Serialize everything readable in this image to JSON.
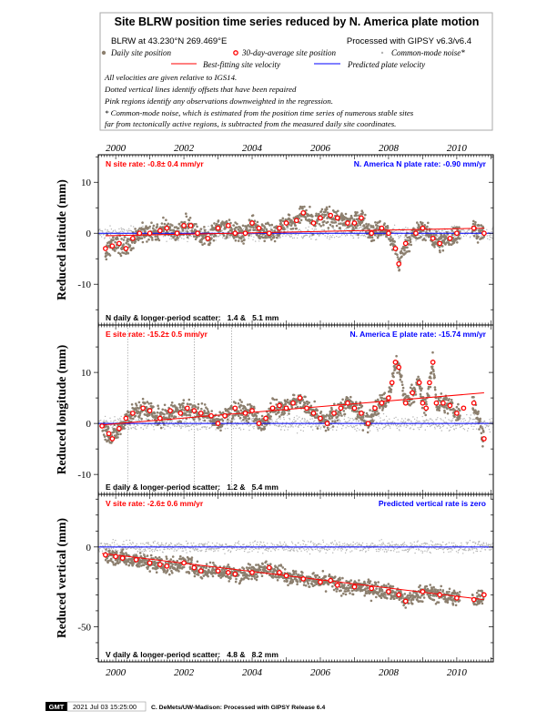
{
  "legend": {
    "title": "Site BLRW position time series reduced by N. America plate motion",
    "site_location": "BLRW at 43.230°N 269.469°E",
    "processing": "Processed with GIPSY v6.3/v6.4",
    "daily": "Daily site position",
    "avg30": "30-day-average site position",
    "cmn": "Common-mode noise*",
    "best_fit": "Best-fitting site velocity",
    "predicted": "Predicted plate velocity",
    "notes": [
      "All velocities are given relative to IGS14.",
      "Dotted vertical lines identify offsets that have been repaired",
      "Pink regions identify any observations downweighted in the regression.",
      "* Common-mode noise, which is estimated from the position time series of numerous stable sites",
      "far from tectonically active regions, is subtracted from the measured daily site coordinates."
    ]
  },
  "colors": {
    "daily": "#8c7f6e",
    "avg": "#ff0000",
    "cmn": "#b4b4b4",
    "fit": "#ff0000",
    "plate": "#0000ff",
    "rate_text": "#ff0000",
    "plate_text": "#0000ff"
  },
  "footer": {
    "logo": "GMT",
    "timestamp": "2021 Jul 03 15:25:00",
    "credit": "C. DeMets/UW-Madison: Processed with GIPSY Release 6.4"
  },
  "chart_data": [
    {
      "type": "scatter",
      "ylabel": "Reduced latitude (mm)",
      "site_rate": "N site rate:  -0.8± 0.4 mm/yr",
      "plate_rate": "N. America N plate rate: -0.90 mm/yr",
      "scatter": "N daily & longer-period scatter:   1.4 &   5.1 mm",
      "xlim": [
        1999.49,
        2011.07
      ],
      "ylim": [
        -18,
        15.4
      ],
      "yticks": [
        10,
        0,
        -10
      ],
      "xticks": [
        2000,
        2002,
        2004,
        2006,
        2008,
        2010
      ],
      "offsets": [],
      "fit": [
        [
          1999.7,
          -0.5
        ],
        [
          2010.8,
          1.0
        ]
      ],
      "plate": [
        [
          1999.49,
          0
        ],
        [
          2011.07,
          0
        ]
      ],
      "avg30": [
        [
          1999.7,
          -3
        ],
        [
          1999.9,
          -2.5
        ],
        [
          2000.1,
          -2
        ],
        [
          2000.3,
          -3
        ],
        [
          2000.5,
          -1
        ],
        [
          2000.7,
          0
        ],
        [
          2001,
          0
        ],
        [
          2001.3,
          0.5
        ],
        [
          2001.5,
          1
        ],
        [
          2001.8,
          0
        ],
        [
          2002,
          1.5
        ],
        [
          2002.2,
          1.5
        ],
        [
          2002.4,
          0
        ],
        [
          2002.7,
          -1
        ],
        [
          2003,
          1
        ],
        [
          2003.3,
          1.5
        ],
        [
          2003.5,
          0
        ],
        [
          2003.8,
          0
        ],
        [
          2004,
          2
        ],
        [
          2004.2,
          1
        ],
        [
          2004.5,
          0
        ],
        [
          2004.8,
          1
        ],
        [
          2005,
          2
        ],
        [
          2005.3,
          2.5
        ],
        [
          2005.5,
          4
        ],
        [
          2005.8,
          2
        ],
        [
          2006,
          3
        ],
        [
          2006.3,
          3.5
        ],
        [
          2006.5,
          3
        ],
        [
          2006.8,
          2
        ],
        [
          2007,
          2
        ],
        [
          2007.2,
          3
        ],
        [
          2007.5,
          0
        ],
        [
          2007.8,
          1
        ],
        [
          2008,
          0
        ],
        [
          2008.2,
          -3
        ],
        [
          2008.3,
          -6
        ],
        [
          2008.5,
          -2
        ],
        [
          2008.8,
          0
        ],
        [
          2009,
          1
        ],
        [
          2009.3,
          -1
        ],
        [
          2009.5,
          -2
        ],
        [
          2009.8,
          -1
        ],
        [
          2010,
          0
        ],
        [
          2010.5,
          1
        ],
        [
          2010.8,
          0
        ]
      ]
    },
    {
      "type": "scatter",
      "ylabel": "Reduced longitude (mm)",
      "site_rate": "E site rate: -15.2± 0.5 mm/yr",
      "plate_rate": "N. America E plate rate: -15.74 mm/yr",
      "scatter": "E daily & longer-period scatter:   1.2 &   5.4 mm",
      "xlim": [
        1999.49,
        2011.07
      ],
      "ylim": [
        -13.9,
        19.3
      ],
      "yticks": [
        10,
        0,
        -10
      ],
      "xticks": [
        2000,
        2002,
        2004,
        2006,
        2008,
        2010
      ],
      "offsets": [
        2000.35,
        2002.3,
        2003.4
      ],
      "fit": [
        [
          1999.6,
          -0.3
        ],
        [
          2010.8,
          6.0
        ]
      ],
      "plate": [
        [
          1999.49,
          0
        ],
        [
          2011.07,
          0
        ]
      ],
      "avg30": [
        [
          1999.6,
          -0.5
        ],
        [
          1999.8,
          -2
        ],
        [
          1999.9,
          -3
        ],
        [
          2000.1,
          -1
        ],
        [
          2000.3,
          1
        ],
        [
          2000.5,
          2
        ],
        [
          2000.8,
          3
        ],
        [
          2001,
          2.5
        ],
        [
          2001.3,
          1
        ],
        [
          2001.6,
          2.5
        ],
        [
          2001.9,
          2
        ],
        [
          2002.1,
          3
        ],
        [
          2002.3,
          2.5
        ],
        [
          2002.5,
          2
        ],
        [
          2002.8,
          1.5
        ],
        [
          2003,
          0
        ],
        [
          2003.2,
          1.5
        ],
        [
          2003.5,
          3
        ],
        [
          2003.8,
          2
        ],
        [
          2004,
          2.5
        ],
        [
          2004.2,
          0
        ],
        [
          2004.4,
          1
        ],
        [
          2004.6,
          3
        ],
        [
          2004.8,
          3.5
        ],
        [
          2005,
          3
        ],
        [
          2005.2,
          4
        ],
        [
          2005.4,
          5
        ],
        [
          2005.6,
          3
        ],
        [
          2005.8,
          2
        ],
        [
          2006,
          1
        ],
        [
          2006.2,
          0
        ],
        [
          2006.4,
          2
        ],
        [
          2006.6,
          3
        ],
        [
          2006.8,
          4
        ],
        [
          2007,
          3
        ],
        [
          2007.2,
          2
        ],
        [
          2007.4,
          0
        ],
        [
          2007.6,
          3
        ],
        [
          2007.8,
          4
        ],
        [
          2008,
          5
        ],
        [
          2008.1,
          8
        ],
        [
          2008.2,
          12
        ],
        [
          2008.3,
          11
        ],
        [
          2008.5,
          4
        ],
        [
          2008.7,
          6
        ],
        [
          2008.9,
          8
        ],
        [
          2009,
          4
        ],
        [
          2009.1,
          3
        ],
        [
          2009.2,
          8
        ],
        [
          2009.3,
          12
        ],
        [
          2009.4,
          4
        ],
        [
          2009.6,
          4
        ],
        [
          2009.8,
          3.5
        ],
        [
          2010,
          2
        ],
        [
          2010.2,
          3
        ],
        [
          2010.5,
          4
        ],
        [
          2010.8,
          -3
        ]
      ]
    },
    {
      "type": "scatter",
      "ylabel": "Reduced vertical (mm)",
      "site_rate": "V site rate:  -2.6± 0.6 mm/yr",
      "plate_rate": "Predicted vertical rate is zero",
      "scatter": "V daily & longer-period scatter:   4.8 &   8.2 mm",
      "xlim": [
        1999.49,
        2011.07
      ],
      "ylim": [
        -72,
        33
      ],
      "yticks": [
        0,
        -50
      ],
      "xticks": [
        2000,
        2002,
        2004,
        2006,
        2008,
        2010
      ],
      "offsets": [],
      "fit": [
        [
          1999.6,
          -4
        ],
        [
          2010.8,
          -33
        ]
      ],
      "plate": [
        [
          1999.49,
          0
        ],
        [
          2011.07,
          0
        ]
      ],
      "avg30": [
        [
          1999.7,
          -5
        ],
        [
          2000,
          -6
        ],
        [
          2000.2,
          -7
        ],
        [
          2000.6,
          -8
        ],
        [
          2001,
          -10
        ],
        [
          2001.3,
          -11
        ],
        [
          2001.5,
          -12
        ],
        [
          2002,
          -10
        ],
        [
          2002.3,
          -13
        ],
        [
          2002.5,
          -15
        ],
        [
          2003,
          -15
        ],
        [
          2003.3,
          -16
        ],
        [
          2003.5,
          -17
        ],
        [
          2004,
          -16
        ],
        [
          2004.5,
          -13
        ],
        [
          2004.8,
          -16
        ],
        [
          2005,
          -18
        ],
        [
          2005.5,
          -20
        ],
        [
          2006,
          -22
        ],
        [
          2006.3,
          -21
        ],
        [
          2006.5,
          -24
        ],
        [
          2007,
          -25
        ],
        [
          2007.5,
          -26
        ],
        [
          2008,
          -28
        ],
        [
          2008.3,
          -30
        ],
        [
          2008.5,
          -34
        ],
        [
          2009,
          -28
        ],
        [
          2009.5,
          -30
        ],
        [
          2010,
          -32
        ],
        [
          2010.5,
          -33
        ],
        [
          2010.8,
          -30
        ]
      ]
    }
  ]
}
